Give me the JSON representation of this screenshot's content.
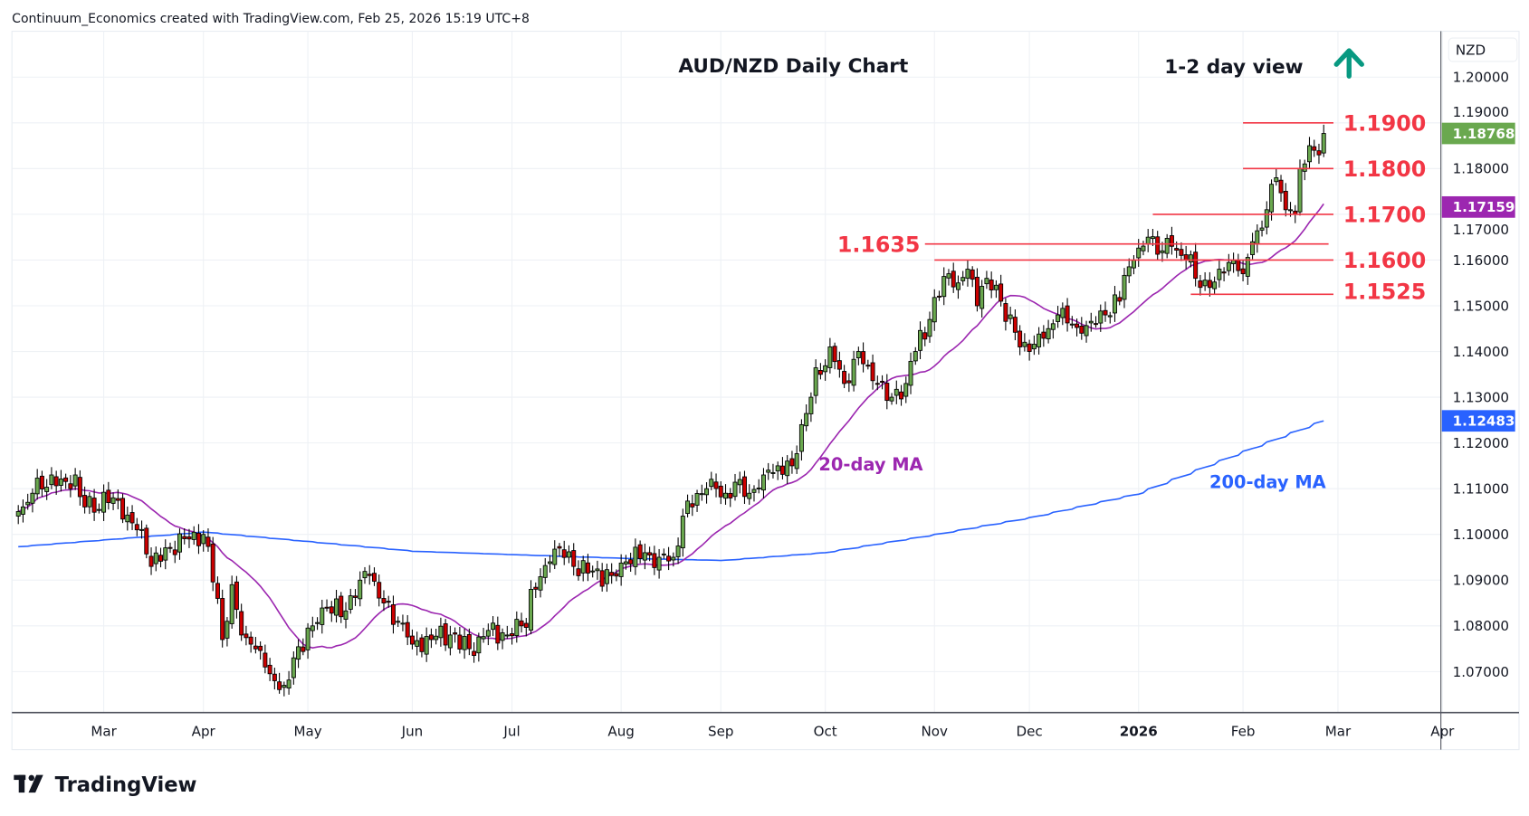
{
  "header": {
    "attribution": "Continuum_Economics created with TradingView.com, Feb 25, 2026 15:19 UTC+8"
  },
  "footer": {
    "logo_text": "TradingView"
  },
  "colors": {
    "up": "#6aa84f",
    "down": "#cc0000",
    "level": "#f23645",
    "ma20": "#9c27b0",
    "ma200": "#2962ff",
    "arrow": "#089981"
  },
  "chart_data": {
    "type": "candlestick",
    "title": "AUD/NZD Daily Chart",
    "view_label": "1-2 day view",
    "view_direction": "up",
    "currency_label": "NZD",
    "ylim": [
      1.062,
      1.2095
    ],
    "y_ticks": [
      "1.20000",
      "1.19000",
      "1.18000",
      "1.17000",
      "1.16000",
      "1.15000",
      "1.14000",
      "1.13000",
      "1.12000",
      "1.11000",
      "1.10000",
      "1.09000",
      "1.08000",
      "1.07000"
    ],
    "x_ticks": [
      {
        "label": "Mar",
        "date": "2025-03-03"
      },
      {
        "label": "Apr",
        "date": "2025-04-01"
      },
      {
        "label": "May",
        "date": "2025-05-01"
      },
      {
        "label": "Jun",
        "date": "2025-06-02"
      },
      {
        "label": "Jul",
        "date": "2025-07-01"
      },
      {
        "label": "Aug",
        "date": "2025-08-01"
      },
      {
        "label": "Sep",
        "date": "2025-09-01"
      },
      {
        "label": "Oct",
        "date": "2025-10-01"
      },
      {
        "label": "Nov",
        "date": "2025-11-03"
      },
      {
        "label": "Dec",
        "date": "2025-12-01"
      },
      {
        "label": "2026",
        "date": "2026-01-01"
      },
      {
        "label": "Feb",
        "date": "2026-02-02"
      },
      {
        "label": "Mar",
        "date": "2026-03-02"
      },
      {
        "label": "Apr",
        "date": "2026-04-01"
      }
    ],
    "close_keypoints": [
      [
        "2025-02-05",
        1.105
      ],
      [
        "2025-02-10",
        1.109
      ],
      [
        "2025-02-14",
        1.113
      ],
      [
        "2025-02-20",
        1.11
      ],
      [
        "2025-02-21",
        1.113
      ],
      [
        "2025-02-25",
        1.106
      ],
      [
        "2025-03-05",
        1.108
      ],
      [
        "2025-03-12",
        1.101
      ],
      [
        "2025-03-17",
        1.093
      ],
      [
        "2025-03-21",
        1.097
      ],
      [
        "2025-03-27",
        1.099
      ],
      [
        "2025-04-01",
        1.1
      ],
      [
        "2025-04-04",
        1.086
      ],
      [
        "2025-04-07",
        1.077
      ],
      [
        "2025-04-09",
        1.089
      ],
      [
        "2025-04-11",
        1.078
      ],
      [
        "2025-04-15",
        1.076
      ],
      [
        "2025-04-18",
        1.071
      ],
      [
        "2025-04-22",
        1.068
      ],
      [
        "2025-04-24",
        1.067
      ],
      [
        "2025-04-28",
        1.073
      ],
      [
        "2025-05-02",
        1.08
      ],
      [
        "2025-05-07",
        1.084
      ],
      [
        "2025-05-12",
        1.082
      ],
      [
        "2025-05-16",
        1.09
      ],
      [
        "2025-05-20",
        1.091
      ],
      [
        "2025-05-23",
        1.085
      ],
      [
        "2025-05-28",
        1.081
      ],
      [
        "2025-06-02",
        1.076
      ],
      [
        "2025-06-06",
        1.077
      ],
      [
        "2025-06-12",
        1.078
      ],
      [
        "2025-06-18",
        1.075
      ],
      [
        "2025-06-24",
        1.079
      ],
      [
        "2025-06-30",
        1.078
      ],
      [
        "2025-07-03",
        1.08
      ],
      [
        "2025-07-08",
        1.088
      ],
      [
        "2025-07-11",
        1.094
      ],
      [
        "2025-07-15",
        1.097
      ],
      [
        "2025-07-18",
        1.093
      ],
      [
        "2025-07-24",
        1.092
      ],
      [
        "2025-07-30",
        1.091
      ],
      [
        "2025-08-04",
        1.094
      ],
      [
        "2025-08-08",
        1.096
      ],
      [
        "2025-08-13",
        1.095
      ],
      [
        "2025-08-18",
        1.095
      ],
      [
        "2025-08-20",
        1.104
      ],
      [
        "2025-08-22",
        1.106
      ],
      [
        "2025-08-27",
        1.11
      ],
      [
        "2025-09-02",
        1.109
      ],
      [
        "2025-09-05",
        1.112
      ],
      [
        "2025-09-09",
        1.109
      ],
      [
        "2025-09-12",
        1.113
      ],
      [
        "2025-09-17",
        1.115
      ],
      [
        "2025-09-22",
        1.115
      ],
      [
        "2025-09-24",
        1.124
      ],
      [
        "2025-09-26",
        1.13
      ],
      [
        "2025-09-30",
        1.135
      ],
      [
        "2025-10-02",
        1.141
      ],
      [
        "2025-10-07",
        1.133
      ],
      [
        "2025-10-10",
        1.14
      ],
      [
        "2025-10-14",
        1.137
      ],
      [
        "2025-10-16",
        1.133
      ],
      [
        "2025-10-21",
        1.13
      ],
      [
        "2025-10-24",
        1.133
      ],
      [
        "2025-10-28",
        1.14
      ],
      [
        "2025-10-31",
        1.147
      ],
      [
        "2025-11-04",
        1.152
      ],
      [
        "2025-11-06",
        1.157
      ],
      [
        "2025-11-10",
        1.155
      ],
      [
        "2025-11-12",
        1.158
      ],
      [
        "2025-11-14",
        1.15
      ],
      [
        "2025-11-18",
        1.156
      ],
      [
        "2025-11-21",
        1.151
      ],
      [
        "2025-11-25",
        1.148
      ],
      [
        "2025-11-27",
        1.141
      ],
      [
        "2025-12-01",
        1.14
      ],
      [
        "2025-12-05",
        1.145
      ],
      [
        "2025-12-09",
        1.148
      ],
      [
        "2025-12-12",
        1.146
      ],
      [
        "2025-12-16",
        1.144
      ],
      [
        "2025-12-19",
        1.146
      ],
      [
        "2025-12-23",
        1.148
      ],
      [
        "2025-12-26",
        1.151
      ],
      [
        "2025-12-31",
        1.16
      ],
      [
        "2026-01-05",
        1.165
      ],
      [
        "2026-01-08",
        1.162
      ],
      [
        "2026-01-12",
        1.163
      ],
      [
        "2026-01-15",
        1.16
      ],
      [
        "2026-01-19",
        1.156
      ],
      [
        "2026-01-22",
        1.154
      ],
      [
        "2026-01-26",
        1.158
      ],
      [
        "2026-01-29",
        1.16
      ],
      [
        "2026-02-02",
        1.157
      ],
      [
        "2026-02-04",
        1.164
      ],
      [
        "2026-02-06",
        1.167
      ],
      [
        "2026-02-09",
        1.171
      ],
      [
        "2026-02-11",
        1.178
      ],
      [
        "2026-02-13",
        1.171
      ],
      [
        "2026-02-16",
        1.171
      ],
      [
        "2026-02-17",
        1.17
      ],
      [
        "2026-02-18",
        1.18
      ],
      [
        "2026-02-20",
        1.185
      ],
      [
        "2026-02-23",
        1.184
      ],
      [
        "2026-02-24",
        1.183
      ],
      [
        "2026-02-25",
        1.18768
      ]
    ],
    "ma200_keypoints": [
      [
        "2025-02-05",
        1.0973
      ],
      [
        "2025-04-01",
        1.1005
      ],
      [
        "2025-06-02",
        1.0963
      ],
      [
        "2025-08-01",
        1.0948
      ],
      [
        "2025-09-01",
        1.0943
      ],
      [
        "2025-10-01",
        1.096
      ],
      [
        "2025-11-03",
        1.1
      ],
      [
        "2025-12-01",
        1.1037
      ],
      [
        "2026-01-01",
        1.1088
      ],
      [
        "2026-02-02",
        1.1182
      ],
      [
        "2026-02-25",
        1.12483
      ]
    ],
    "levels": [
      {
        "label": "1.1900",
        "value": 1.19,
        "from": "2026-02-02"
      },
      {
        "label": "1.1800",
        "value": 1.18,
        "from": "2026-02-02"
      },
      {
        "label": "1.1700",
        "value": 1.17,
        "from": "2026-01-06"
      },
      {
        "label": "1.1635",
        "value": 1.1635,
        "from": "2025-10-30"
      },
      {
        "label": "1.1600",
        "value": 1.16,
        "from": "2025-11-03"
      },
      {
        "label": "1.1525",
        "value": 1.1525,
        "from": "2026-01-16"
      }
    ],
    "last_price": "1.18768",
    "ma20_value": "1.17159",
    "ma200_value": "1.12483",
    "ma20_label": "20-day MA",
    "ma200_label": "200-day MA"
  }
}
